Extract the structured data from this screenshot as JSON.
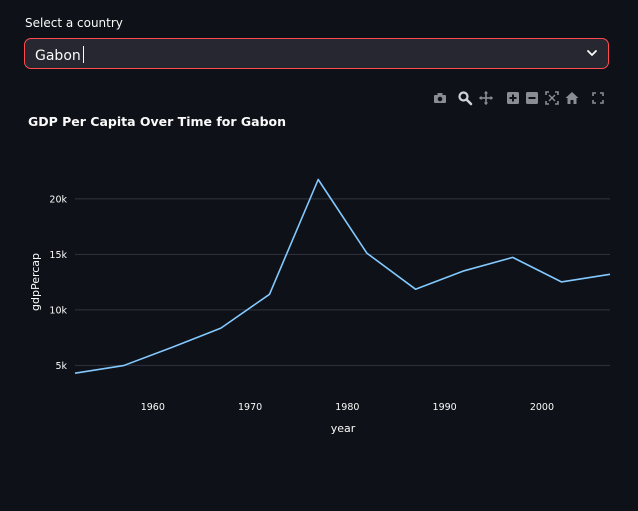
{
  "select": {
    "label": "Select a country",
    "value": "Gabon"
  },
  "modebar": {
    "icons": [
      "camera-icon",
      "zoom-icon",
      "pan-icon",
      "zoom-in-icon",
      "zoom-out-icon",
      "autoscale-icon",
      "reset-axes-icon",
      "fullscreen-icon"
    ]
  },
  "colors": {
    "background": "#0e1117",
    "line": "#83c9ff",
    "grid": "#31333f",
    "select_border": "#ff4b4b",
    "select_bg": "#262730"
  },
  "chart_data": {
    "type": "line",
    "title": "GDP Per Capita Over Time for Gabon",
    "xlabel": "year",
    "ylabel": "gdpPercap",
    "xlim": [
      1952,
      2007
    ],
    "ylim": [
      3500,
      23500
    ],
    "x_ticks": [
      1960,
      1970,
      1980,
      1990,
      2000
    ],
    "y_ticks": [
      5000,
      10000,
      15000,
      20000
    ],
    "y_tick_labels": [
      "5k",
      "10k",
      "15k",
      "20k"
    ],
    "grid": true,
    "series": [
      {
        "x": [
          1952,
          1957,
          1962,
          1967,
          1972,
          1977,
          1982,
          1987,
          1992,
          1997,
          2002,
          2007
        ],
        "y": [
          4293,
          4976,
          6631,
          8359,
          11401,
          21746,
          15113,
          11864,
          13522,
          14723,
          12521,
          13206
        ]
      }
    ]
  }
}
